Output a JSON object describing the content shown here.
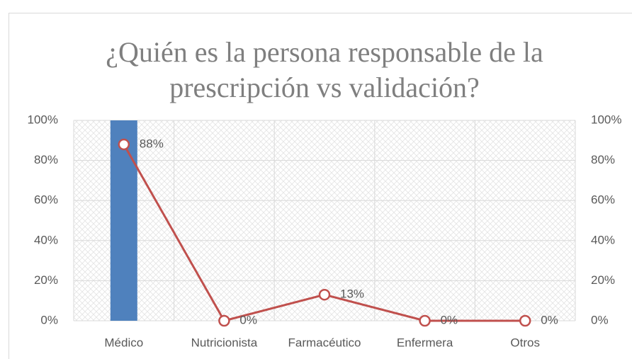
{
  "chart_data": {
    "type": "bar+line",
    "title": [
      "¿Quién es la persona responsable de la",
      "prescripción vs validación?"
    ],
    "categories": [
      "Médico",
      "Nutricionista",
      "Farmacéutico",
      "Enfermera",
      "Otros"
    ],
    "series": [
      {
        "type": "bar",
        "color": "#4f81bd",
        "values": [
          100,
          0,
          0,
          0,
          0
        ]
      },
      {
        "type": "line",
        "axis": "y2",
        "color": "#c0504d",
        "values": [
          88,
          0,
          13,
          0,
          0
        ],
        "value_labels": [
          "88%",
          "0%",
          "13%",
          "0%",
          "0%"
        ]
      }
    ],
    "ylim": [
      0,
      100
    ],
    "yticks": [
      {
        "value": 0,
        "label": "0%"
      },
      {
        "value": 20,
        "label": "20%"
      },
      {
        "value": 40,
        "label": "40%"
      },
      {
        "value": 60,
        "label": "60%"
      },
      {
        "value": 80,
        "label": "80%"
      },
      {
        "value": 100,
        "label": "100%"
      }
    ],
    "y2lim": [
      0,
      100
    ],
    "y2ticks": [
      {
        "value": 0,
        "label": "0%"
      },
      {
        "value": 20,
        "label": "20%"
      },
      {
        "value": 40,
        "label": "40%"
      },
      {
        "value": 60,
        "label": "60%"
      },
      {
        "value": 80,
        "label": "80%"
      },
      {
        "value": 100,
        "label": "100%"
      }
    ],
    "grid": true
  }
}
